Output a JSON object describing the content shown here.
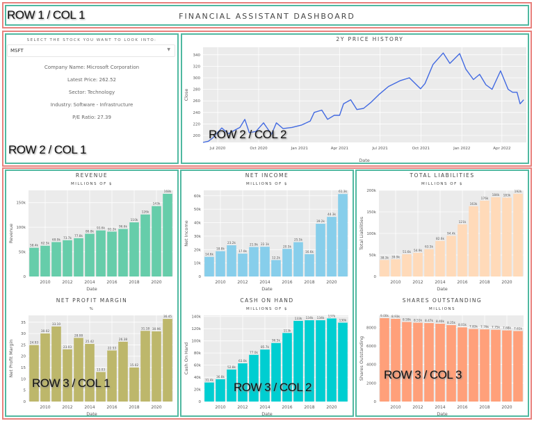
{
  "header": {
    "title": "FINANCIAL ASSISTANT DASHBOARD"
  },
  "overlays": {
    "r1c1": "ROW 1 / COL 1",
    "r2c1": "ROW 2 / COL 1",
    "r2c2": "ROW 2 / COL 2",
    "r3c1": "ROW 3 / COL 1",
    "r3c2": "ROW 3 / COL 2",
    "r3c3": "ROW 3 / COL 3"
  },
  "stock_panel": {
    "select_label": "SELECT THE STOCK YOU WANT TO LOOK INTO:",
    "selected": "MSFT",
    "company": "Company Name: Microsoft Corporation",
    "price": "Latest Price: 262.52",
    "sector": "Sector: Technology",
    "industry": "Industry: Software - Infrastructure",
    "pe": "P/E Ratio: 27.39"
  },
  "chart_data": [
    {
      "id": "price",
      "type": "line",
      "title": "2Y PRICE HISTORY",
      "xlabel": "Date",
      "ylabel": "Close",
      "color": "#4169e1",
      "xlim": [
        "2020-05-29",
        "2022-05-26"
      ],
      "ylim": [
        188,
        353
      ],
      "yticks": [
        200,
        220,
        240,
        260,
        280,
        300,
        320,
        340
      ],
      "xticks": [
        {
          "d": "2020-07-01",
          "l": "Jul 2020"
        },
        {
          "d": "2020-10-01",
          "l": "Oct 2020"
        },
        {
          "d": "2021-01-01",
          "l": "Jan 2021"
        },
        {
          "d": "2021-04-01",
          "l": "Apr 2021"
        },
        {
          "d": "2021-07-01",
          "l": "Jul 2021"
        },
        {
          "d": "2021-10-01",
          "l": "Oct 2021"
        },
        {
          "d": "2022-01-01",
          "l": "Jan 2022"
        },
        {
          "d": "2022-04-01",
          "l": "Apr 2022"
        }
      ],
      "points": [
        [
          "2020-05-29",
          183
        ],
        [
          "2020-06-10",
          190
        ],
        [
          "2020-06-20",
          196
        ],
        [
          "2020-07-10",
          213
        ],
        [
          "2020-07-25",
          203
        ],
        [
          "2020-08-10",
          210
        ],
        [
          "2020-08-20",
          214
        ],
        [
          "2020-08-31",
          228
        ],
        [
          "2020-09-10",
          205
        ],
        [
          "2020-09-25",
          207
        ],
        [
          "2020-10-12",
          222
        ],
        [
          "2020-10-30",
          202
        ],
        [
          "2020-11-10",
          222
        ],
        [
          "2020-11-25",
          212
        ],
        [
          "2020-12-15",
          214
        ],
        [
          "2021-01-05",
          218
        ],
        [
          "2021-01-25",
          225
        ],
        [
          "2021-02-03",
          240
        ],
        [
          "2021-02-20",
          244
        ],
        [
          "2021-03-05",
          228
        ],
        [
          "2021-03-20",
          235
        ],
        [
          "2021-04-01",
          235
        ],
        [
          "2021-04-10",
          255
        ],
        [
          "2021-04-26",
          262
        ],
        [
          "2021-05-10",
          245
        ],
        [
          "2021-05-25",
          247
        ],
        [
          "2021-06-10",
          257
        ],
        [
          "2021-06-30",
          272
        ],
        [
          "2021-07-20",
          285
        ],
        [
          "2021-08-15",
          295
        ],
        [
          "2021-09-05",
          300
        ],
        [
          "2021-09-30",
          281
        ],
        [
          "2021-10-10",
          290
        ],
        [
          "2021-10-28",
          323
        ],
        [
          "2021-11-20",
          343
        ],
        [
          "2021-12-05",
          325
        ],
        [
          "2021-12-27",
          342
        ],
        [
          "2022-01-10",
          315
        ],
        [
          "2022-01-27",
          297
        ],
        [
          "2022-02-10",
          306
        ],
        [
          "2022-02-24",
          288
        ],
        [
          "2022-03-10",
          280
        ],
        [
          "2022-03-29",
          312
        ],
        [
          "2022-04-15",
          280
        ],
        [
          "2022-04-25",
          275
        ],
        [
          "2022-05-05",
          275
        ],
        [
          "2022-05-12",
          255
        ],
        [
          "2022-05-20",
          262
        ]
      ]
    },
    {
      "id": "revenue",
      "type": "bar",
      "title": "REVENUE",
      "subtitle": "MILLIONS OF $",
      "xlabel": "Date",
      "ylabel": "Revenue",
      "color": "#66cdaa",
      "ylim": [
        0,
        175000
      ],
      "yticks": [
        0,
        50000,
        100000,
        150000
      ],
      "ytick_labels": [
        "0",
        "50k",
        "100k",
        "150k"
      ],
      "categories": [
        2009,
        2010,
        2011,
        2012,
        2013,
        2014,
        2015,
        2016,
        2017,
        2018,
        2019,
        2020,
        2021
      ],
      "xticks": [
        2010,
        2012,
        2014,
        2016,
        2018,
        2020
      ],
      "values": [
        58400,
        62500,
        69900,
        73700,
        77800,
        86800,
        93600,
        91200,
        96600,
        110000,
        126000,
        143000,
        168000
      ],
      "labels": [
        "58.4k",
        "62.5k",
        "69.9k",
        "73.7k",
        "77.8k",
        "86.8k",
        "93.6k",
        "91.2k",
        "96.6k",
        "110k",
        "126k",
        "143k",
        "168k"
      ]
    },
    {
      "id": "net-income",
      "type": "bar",
      "title": "NET INCOME",
      "subtitle": "MILLIONS OF $",
      "xlabel": "Date",
      "ylabel": "Net Income",
      "color": "#87ceeb",
      "ylim": [
        0,
        64000
      ],
      "yticks": [
        0,
        10000,
        20000,
        30000,
        40000,
        50000,
        60000
      ],
      "ytick_labels": [
        "0",
        "10k",
        "20k",
        "30k",
        "40k",
        "50k",
        "60k"
      ],
      "categories": [
        2009,
        2010,
        2011,
        2012,
        2013,
        2014,
        2015,
        2016,
        2017,
        2018,
        2019,
        2020,
        2021
      ],
      "xticks": [
        2010,
        2012,
        2014,
        2016,
        2018,
        2020
      ],
      "values": [
        14600,
        18800,
        23200,
        17000,
        21900,
        22100,
        12200,
        20500,
        25500,
        16600,
        39200,
        44300,
        61300
      ],
      "labels": [
        "14.6k",
        "18.8k",
        "23.2k",
        "17.0k",
        "21.9k",
        "22.1k",
        "12.2k",
        "20.5k",
        "25.5k",
        "16.6k",
        "39.2k",
        "44.3k",
        "61.3k"
      ]
    },
    {
      "id": "total-liabilities",
      "type": "bar",
      "title": "TOTAL LIABILITIES",
      "subtitle": "MILLIONS OF $",
      "xlabel": "Date",
      "ylabel": "Total Liabilities",
      "color": "#ffdab9",
      "ylim": [
        0,
        200000
      ],
      "yticks": [
        0,
        50000,
        100000,
        150000,
        200000
      ],
      "ytick_labels": [
        "0",
        "50k",
        "100k",
        "150k",
        "200k"
      ],
      "categories": [
        2009,
        2010,
        2011,
        2012,
        2013,
        2014,
        2015,
        2016,
        2017,
        2018,
        2019,
        2020,
        2021
      ],
      "xticks": [
        2010,
        2012,
        2014,
        2016,
        2018,
        2020
      ],
      "values": [
        38300,
        39900,
        51600,
        54900,
        63500,
        82600,
        94400,
        121000,
        163000,
        176000,
        184000,
        183000,
        192000
      ],
      "labels": [
        "38.3k",
        "39.9k",
        "51.6k",
        "54.9k",
        "63.5k",
        "82.6k",
        "94.4k",
        "121k",
        "163k",
        "176k",
        "184k",
        "183k",
        "192k"
      ]
    },
    {
      "id": "net-profit-margin",
      "type": "bar",
      "title": "NET PROFIT MARGIN",
      "subtitle": "%",
      "xlabel": "Date",
      "ylabel": "Net Profit Margin",
      "color": "#bdb76b",
      "ylim": [
        0,
        38
      ],
      "yticks": [
        0,
        5,
        10,
        15,
        20,
        25,
        30,
        35
      ],
      "ytick_labels": [
        "0",
        "5",
        "10",
        "15",
        "20",
        "25",
        "30",
        "35"
      ],
      "categories": [
        2009,
        2010,
        2011,
        2012,
        2013,
        2014,
        2015,
        2016,
        2017,
        2018,
        2019,
        2020,
        2021
      ],
      "xticks": [
        2010,
        2012,
        2014,
        2016,
        2018,
        2020
      ],
      "values": [
        24.93,
        30.02,
        33.1,
        23.03,
        28.08,
        25.42,
        13.03,
        22.53,
        26.38,
        15.02,
        31.18,
        30.96,
        36.45
      ],
      "labels": [
        "24.93",
        "30.02",
        "33.10",
        "23.03",
        "28.08",
        "25.42",
        "13.03",
        "22.53",
        "26.38",
        "15.02",
        "31.18",
        "30.96",
        "36.45"
      ]
    },
    {
      "id": "cash-on-hand",
      "type": "bar",
      "title": "CASH ON HAND",
      "subtitle": "MILLIONS OF $",
      "xlabel": "Date",
      "ylabel": "Cash On Hand",
      "color": "#00ced1",
      "ylim": [
        0,
        142000
      ],
      "yticks": [
        0,
        20000,
        40000,
        60000,
        80000,
        100000,
        120000,
        140000
      ],
      "ytick_labels": [
        "0",
        "20k",
        "40k",
        "60k",
        "80k",
        "100k",
        "120k",
        "140k"
      ],
      "categories": [
        2009,
        2010,
        2011,
        2012,
        2013,
        2014,
        2015,
        2016,
        2017,
        2018,
        2019,
        2020,
        2021
      ],
      "xticks": [
        2010,
        2012,
        2014,
        2016,
        2018,
        2020
      ],
      "values": [
        31400,
        36800,
        52800,
        63000,
        77000,
        85700,
        96500,
        113000,
        133000,
        134000,
        134000,
        137000,
        130000
      ],
      "labels": [
        "31.4k",
        "36.8k",
        "52.8k",
        "63.0k",
        "77.0k",
        "85.7k",
        "96.5k",
        "113k",
        "133k",
        "134k",
        "134k",
        "137k",
        "130k"
      ]
    },
    {
      "id": "shares-outstanding",
      "type": "bar",
      "title": "SHARES OUTSTANDING",
      "subtitle": "MILLIONS",
      "xlabel": "Date",
      "ylabel": "Shares Outstanding",
      "color": "#ffa07a",
      "ylim": [
        0,
        9300
      ],
      "yticks": [
        0,
        2000,
        4000,
        6000,
        8000
      ],
      "ytick_labels": [
        "0",
        "2000",
        "4000",
        "6000",
        "8000"
      ],
      "categories": [
        2009,
        2010,
        2011,
        2012,
        2013,
        2014,
        2015,
        2016,
        2017,
        2018,
        2019,
        2020,
        2021
      ],
      "xticks": [
        2010,
        2012,
        2014,
        2016,
        2018,
        2020
      ],
      "values": [
        9000,
        8930,
        8590,
        8510,
        8470,
        8400,
        8250,
        8010,
        7830,
        7790,
        7750,
        7680,
        7610
      ],
      "labels": [
        "9.00k",
        "8.93k",
        "8.59k",
        "8.51k",
        "8.47k",
        "8.40k",
        "8.25k",
        "8.01k",
        "7.83k",
        "7.79k",
        "7.75k",
        "7.68k",
        "7.61k"
      ]
    }
  ]
}
